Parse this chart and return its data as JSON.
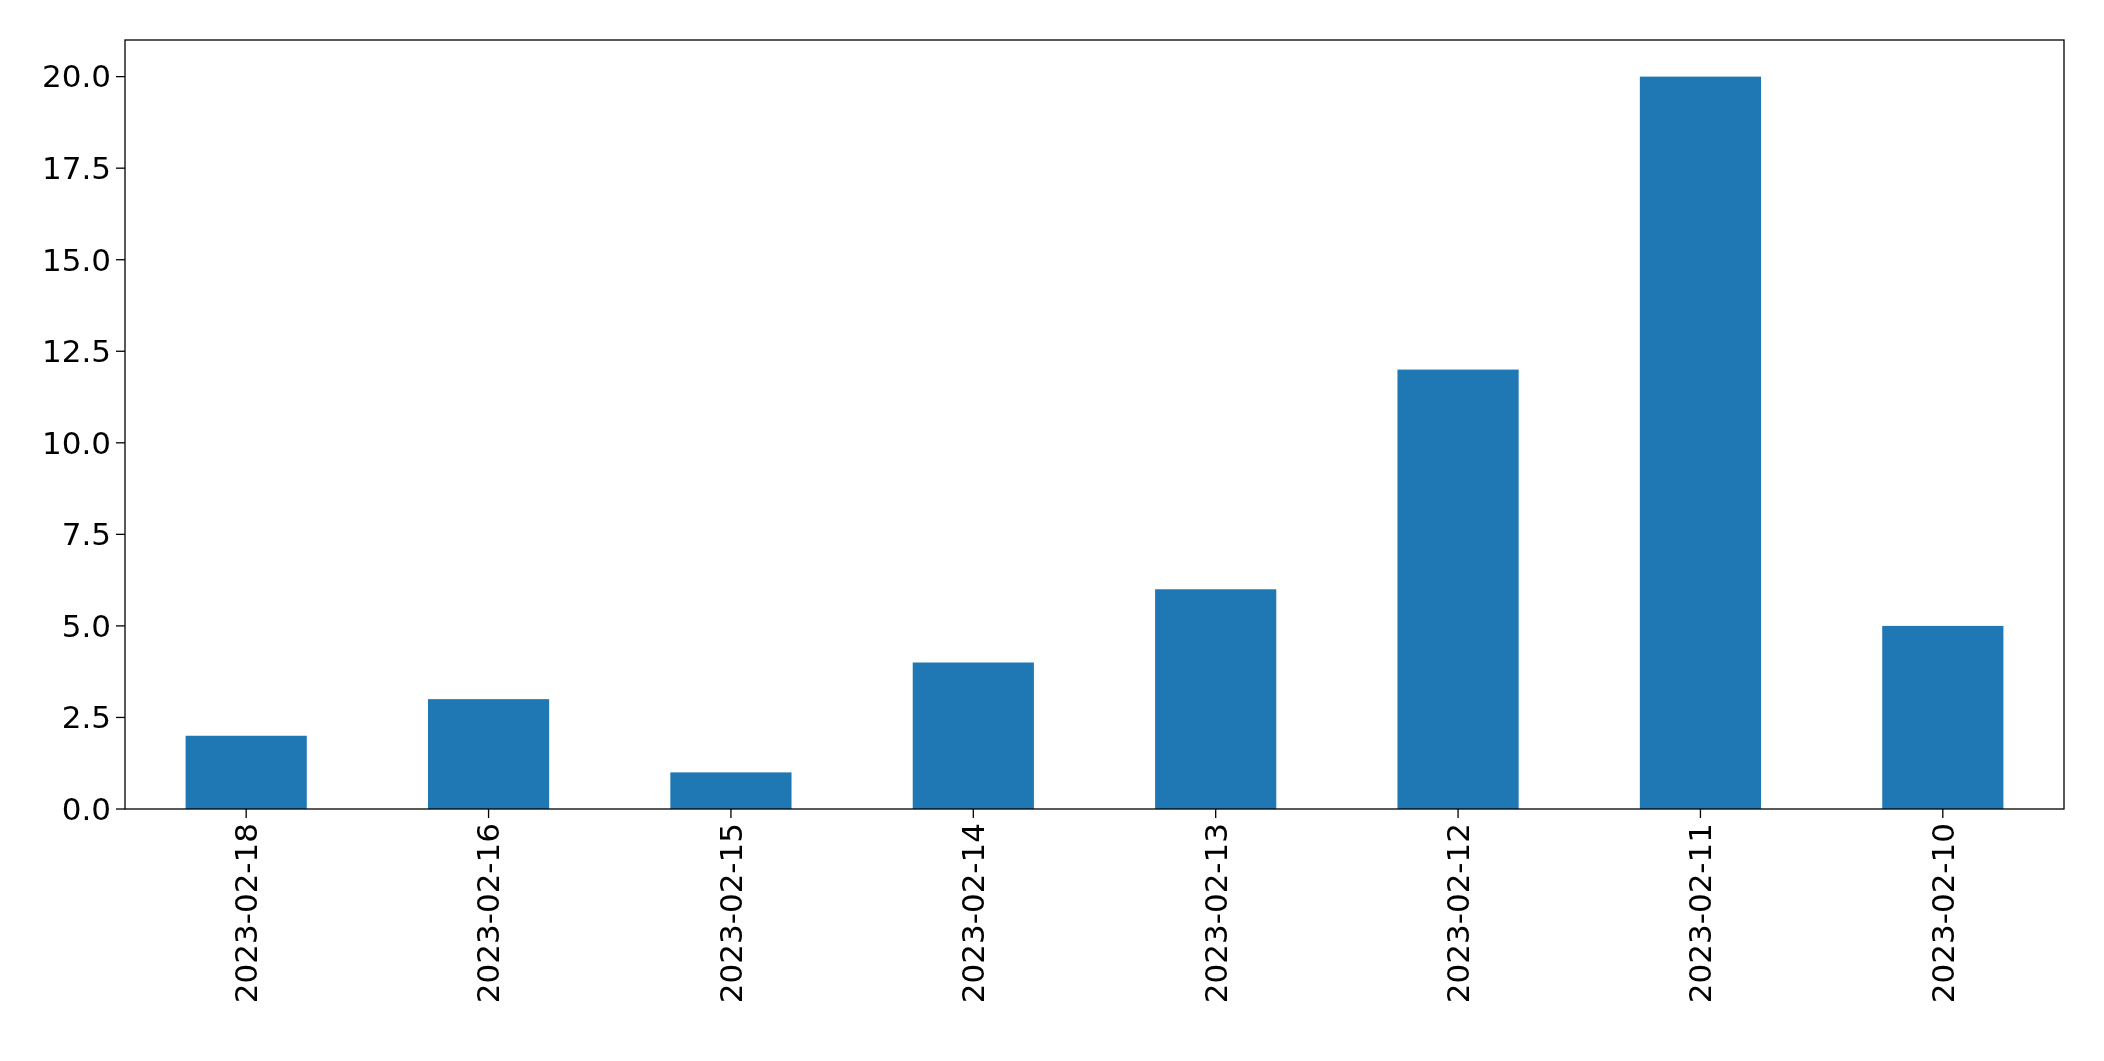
{
  "chart_data": {
    "type": "bar",
    "categories": [
      "2023-02-18",
      "2023-02-16",
      "2023-02-15",
      "2023-02-14",
      "2023-02-13",
      "2023-02-12",
      "2023-02-11",
      "2023-02-10"
    ],
    "values": [
      2,
      3,
      1,
      4,
      6,
      12,
      20,
      5
    ],
    "color": "#1f77b4",
    "ylim": [
      0,
      21
    ],
    "yticks": [
      {
        "value": 0,
        "label": "0.0"
      },
      {
        "value": 2.5,
        "label": "2.5"
      },
      {
        "value": 5,
        "label": "5.0"
      },
      {
        "value": 7.5,
        "label": "7.5"
      },
      {
        "value": 10,
        "label": "10.0"
      },
      {
        "value": 12.5,
        "label": "12.5"
      },
      {
        "value": 15,
        "label": "15.0"
      },
      {
        "value": 17.5,
        "label": "17.5"
      },
      {
        "value": 20,
        "label": "20.0"
      }
    ],
    "grid": false
  }
}
